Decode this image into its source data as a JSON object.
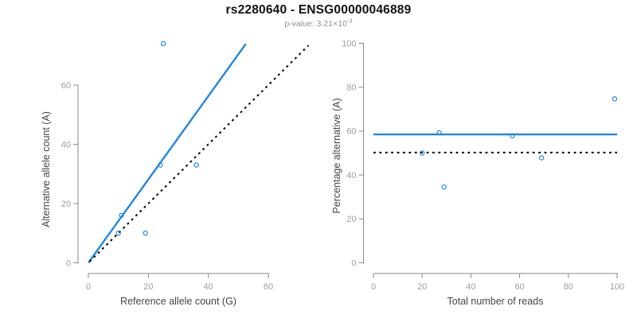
{
  "header": {
    "title": "rs2280640 - ENSG00000046889",
    "subtitle_prefix": "p-value: 3.21×10",
    "subtitle_exponent": "-3"
  },
  "colors": {
    "accent_blue": "#1f87e1",
    "axis_gray": "#8a8a8a",
    "tick_label_gray": "#9c9c9c",
    "axis_title_gray": "#454545",
    "dashed_black": "#0a0a0a"
  },
  "chart_data": [
    {
      "type": "scatter",
      "name": "allele-counts",
      "xlabel": "Reference allele count (G)",
      "ylabel": "Alternative allele count (A)",
      "xticks": [
        0,
        20,
        40,
        60
      ],
      "yticks": [
        0,
        20,
        40,
        60
      ],
      "xlim": [
        0,
        62
      ],
      "ylim": [
        0,
        75
      ],
      "grid": false,
      "legend": false,
      "points": [
        [
          25,
          74
        ],
        [
          11,
          16
        ],
        [
          10,
          10
        ],
        [
          19,
          10
        ],
        [
          24,
          33
        ],
        [
          36,
          33
        ]
      ],
      "lines": [
        {
          "name": "fit-line",
          "style": "solid",
          "color": "blue",
          "from": [
            0,
            0
          ],
          "to": [
            52.5,
            73.9
          ]
        },
        {
          "name": "identity-line",
          "style": "dotted",
          "color": "black",
          "from": [
            0.4,
            0.4
          ],
          "to": [
            73.4,
            73.4
          ]
        }
      ]
    },
    {
      "type": "scatter",
      "name": "percentage-alternative",
      "xlabel": "Total number of reads",
      "ylabel": "Percentage alternative (A)",
      "xticks": [
        0,
        20,
        40,
        60,
        80,
        100
      ],
      "yticks": [
        0,
        20,
        40,
        60,
        80,
        100
      ],
      "xlim": [
        0,
        100
      ],
      "ylim": [
        0,
        100
      ],
      "grid": false,
      "legend": false,
      "points": [
        [
          20,
          50
        ],
        [
          27,
          59.3
        ],
        [
          29,
          34.5
        ],
        [
          57,
          57.9
        ],
        [
          69,
          47.8
        ],
        [
          99,
          74.7
        ]
      ],
      "lines": [
        {
          "name": "mean-percentage-line",
          "style": "solid",
          "color": "blue",
          "from": [
            0,
            58.5
          ],
          "to": [
            100,
            58.5
          ]
        },
        {
          "name": "expected-percentage-line",
          "style": "dotted",
          "color": "black",
          "from": [
            0,
            50.2
          ],
          "to": [
            100,
            50.2
          ]
        }
      ]
    }
  ]
}
